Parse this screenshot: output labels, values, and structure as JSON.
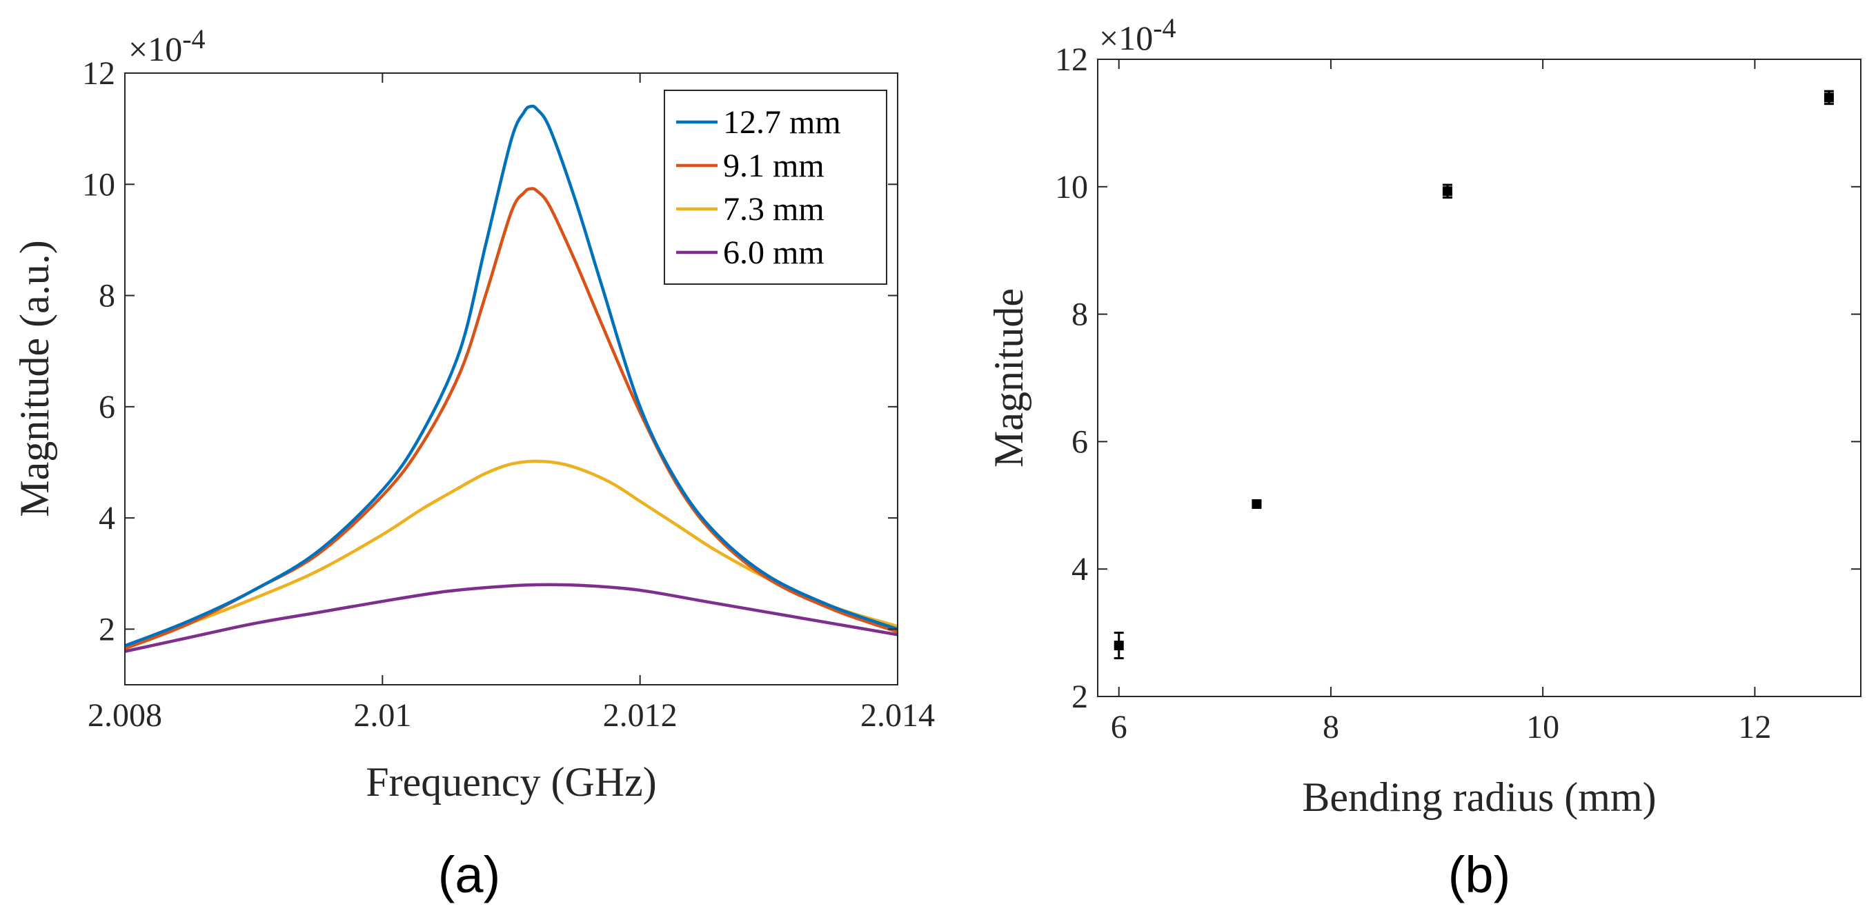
{
  "chart_data": [
    {
      "panel": "(a)",
      "type": "line",
      "xlabel": "Frequency (GHz)",
      "ylabel": "Magnitude (a.u.)",
      "y_exponent": "×10^-4",
      "xlim": [
        2.008,
        2.014
      ],
      "ylim": [
        1,
        12
      ],
      "xticks": [
        2.008,
        2.01,
        2.012,
        2.014
      ],
      "xtick_labels": [
        "2.008",
        "2.01",
        "2.012",
        "2.014"
      ],
      "yticks": [
        2,
        4,
        6,
        8,
        10,
        12
      ],
      "ytick_labels": [
        "2",
        "4",
        "6",
        "8",
        "10",
        "12"
      ],
      "legend_position": "top-right",
      "series": [
        {
          "name": "12.7 mm",
          "color": "#0072bd",
          "x": [
            2.008,
            2.0085,
            2.009,
            2.0095,
            2.01,
            2.0103,
            2.0106,
            2.0108,
            2.011,
            2.0111,
            2.01115,
            2.0112,
            2.0113,
            2.0115,
            2.0117,
            2.012,
            2.0123,
            2.0126,
            2.013,
            2.0135,
            2.014
          ],
          "y": [
            1.7,
            2.15,
            2.7,
            3.4,
            4.5,
            5.5,
            7.0,
            8.9,
            10.8,
            11.3,
            11.4,
            11.35,
            11.0,
            9.7,
            8.2,
            6.0,
            4.6,
            3.7,
            2.95,
            2.4,
            2.0
          ]
        },
        {
          "name": "9.1 mm",
          "color": "#d95319",
          "x": [
            2.008,
            2.0085,
            2.009,
            2.0095,
            2.01,
            2.0103,
            2.0106,
            2.0108,
            2.011,
            2.0111,
            2.01115,
            2.0112,
            2.0113,
            2.0115,
            2.0117,
            2.012,
            2.0123,
            2.0126,
            2.013,
            2.0135,
            2.014
          ],
          "y": [
            1.65,
            2.1,
            2.7,
            3.35,
            4.4,
            5.3,
            6.6,
            8.0,
            9.5,
            9.85,
            9.92,
            9.88,
            9.6,
            8.6,
            7.5,
            5.9,
            4.55,
            3.65,
            2.9,
            2.35,
            1.95
          ]
        },
        {
          "name": "7.3 mm",
          "color": "#edb120",
          "x": [
            2.008,
            2.0085,
            2.009,
            2.0095,
            2.01,
            2.0103,
            2.0106,
            2.0108,
            2.011,
            2.0112,
            2.0114,
            2.0116,
            2.0118,
            2.012,
            2.0123,
            2.0126,
            2.013,
            2.0135,
            2.014
          ],
          "y": [
            1.7,
            2.1,
            2.55,
            3.05,
            3.7,
            4.15,
            4.55,
            4.8,
            4.97,
            5.02,
            4.97,
            4.82,
            4.6,
            4.3,
            3.85,
            3.4,
            2.9,
            2.4,
            2.05
          ]
        },
        {
          "name": "6.0 mm",
          "color": "#7e2f8e",
          "x": [
            2.008,
            2.0085,
            2.009,
            2.0095,
            2.01,
            2.0105,
            2.011,
            2.0113,
            2.0116,
            2.012,
            2.0125,
            2.013,
            2.0135,
            2.014
          ],
          "y": [
            1.6,
            1.85,
            2.1,
            2.3,
            2.5,
            2.68,
            2.78,
            2.8,
            2.78,
            2.7,
            2.5,
            2.3,
            2.1,
            1.9
          ]
        }
      ]
    },
    {
      "panel": "(b)",
      "type": "scatter",
      "xlabel": "Bending radius (mm)",
      "ylabel": "Magnitude",
      "y_exponent": "×10^-4",
      "xlim": [
        5.8,
        13
      ],
      "ylim": [
        2,
        12
      ],
      "xticks": [
        6,
        8,
        10,
        12
      ],
      "xtick_labels": [
        "6",
        "8",
        "10",
        "12"
      ],
      "yticks": [
        2,
        4,
        6,
        8,
        10,
        12
      ],
      "ytick_labels": [
        "2",
        "4",
        "6",
        "8",
        "10",
        "12"
      ],
      "marker_color": "#000000",
      "points": [
        {
          "x": 6.0,
          "y": 2.8,
          "err": 0.2
        },
        {
          "x": 7.3,
          "y": 5.02,
          "err": 0.04
        },
        {
          "x": 9.1,
          "y": 9.93,
          "err": 0.1
        },
        {
          "x": 12.7,
          "y": 11.4,
          "err": 0.1
        }
      ]
    }
  ]
}
